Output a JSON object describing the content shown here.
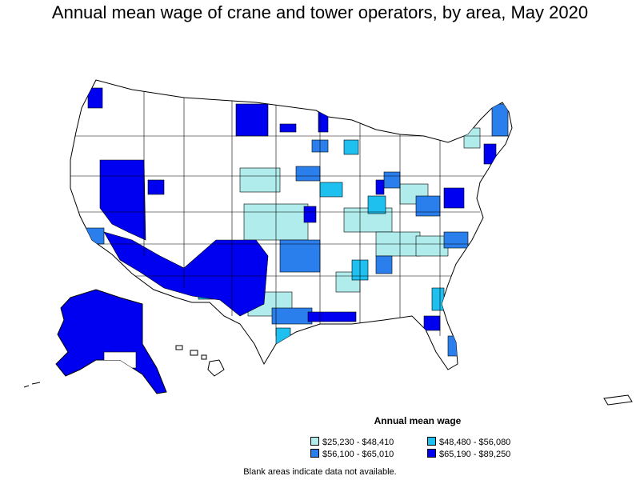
{
  "title": "Annual mean wage of crane and tower operators, by area, May 2020",
  "legend": {
    "title": "Annual mean wage",
    "items": [
      {
        "label": "$25,230 - $48,410",
        "color": "#b0ecec"
      },
      {
        "label": "$48,480 - $56,080",
        "color": "#1ec0f0"
      },
      {
        "label": "$56,100 - $65,010",
        "color": "#2a7fec"
      },
      {
        "label": "$65,190 - $89,250",
        "color": "#0000f0"
      }
    ]
  },
  "footnote": "Blank areas indicate data not available."
}
